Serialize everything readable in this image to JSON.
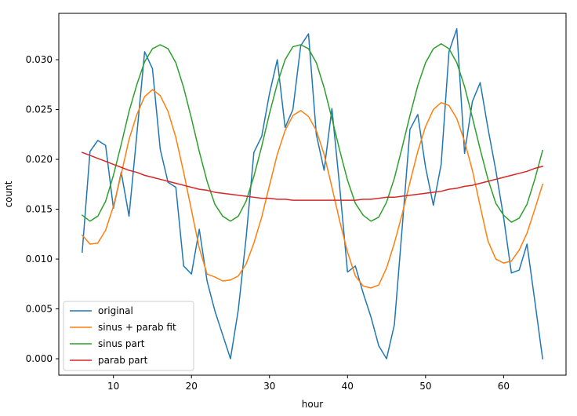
{
  "chart_data": {
    "type": "line",
    "title": "",
    "xlabel": "hour",
    "ylabel": "count",
    "xlim": [
      3,
      68
    ],
    "ylim": [
      -0.00165,
      0.03465
    ],
    "xticks": [
      10,
      20,
      30,
      40,
      50,
      60
    ],
    "xtick_labels": [
      "10",
      "20",
      "30",
      "40",
      "50",
      "60"
    ],
    "yticks": [
      0.0,
      0.005,
      0.01,
      0.015,
      0.02,
      0.025,
      0.03
    ],
    "ytick_labels": [
      "0.000",
      "0.005",
      "0.010",
      "0.015",
      "0.020",
      "0.025",
      "0.030"
    ],
    "grid": false,
    "legend_position": "lower-left",
    "x": [
      6,
      7,
      8,
      9,
      10,
      11,
      12,
      13,
      14,
      15,
      16,
      17,
      18,
      19,
      20,
      21,
      22,
      23,
      24,
      25,
      26,
      27,
      28,
      29,
      30,
      31,
      32,
      33,
      34,
      35,
      36,
      37,
      38,
      39,
      40,
      41,
      42,
      43,
      44,
      45,
      46,
      47,
      48,
      49,
      50,
      51,
      52,
      53,
      54,
      55,
      56,
      57,
      58,
      59,
      60,
      61,
      62,
      63,
      64,
      65
    ],
    "series": [
      {
        "name": "original",
        "color": "#1f77b4",
        "values": [
          0.0107,
          0.0208,
          0.0219,
          0.0214,
          0.0151,
          0.0187,
          0.0143,
          0.0225,
          0.0308,
          0.0291,
          0.021,
          0.0177,
          0.0172,
          0.0093,
          0.0085,
          0.013,
          0.0078,
          0.0048,
          0.0024,
          0.0,
          0.0049,
          0.0121,
          0.0207,
          0.0223,
          0.0266,
          0.03,
          0.0232,
          0.025,
          0.0314,
          0.0326,
          0.0225,
          0.0189,
          0.0251,
          0.0172,
          0.0087,
          0.0093,
          0.0066,
          0.0042,
          0.0013,
          0.0,
          0.0034,
          0.0131,
          0.023,
          0.0245,
          0.0192,
          0.0154,
          0.0195,
          0.0308,
          0.0331,
          0.0206,
          0.0258,
          0.0277,
          0.0231,
          0.0189,
          0.0142,
          0.0086,
          0.0089,
          0.0115,
          0.0058,
          0.0
        ]
      },
      {
        "name": "sinus + parab fit",
        "color": "#ff7f0e",
        "values": [
          0.0124,
          0.0115,
          0.0116,
          0.0129,
          0.0153,
          0.0185,
          0.022,
          0.0245,
          0.0263,
          0.027,
          0.0264,
          0.0248,
          0.0222,
          0.0187,
          0.0149,
          0.0111,
          0.0085,
          0.0082,
          0.0078,
          0.0079,
          0.0083,
          0.0095,
          0.0116,
          0.0142,
          0.0174,
          0.0205,
          0.0229,
          0.0244,
          0.0249,
          0.0243,
          0.0229,
          0.0205,
          0.0172,
          0.0138,
          0.0107,
          0.0083,
          0.0073,
          0.0071,
          0.0074,
          0.0091,
          0.0116,
          0.0145,
          0.0177,
          0.0208,
          0.0233,
          0.025,
          0.0257,
          0.0254,
          0.0241,
          0.0218,
          0.0189,
          0.0153,
          0.0118,
          0.01,
          0.0096,
          0.0098,
          0.0109,
          0.0126,
          0.015,
          0.0175
        ]
      },
      {
        "name": "sinus part",
        "color": "#2ca02c",
        "values": [
          0.0144,
          0.0138,
          0.0143,
          0.0158,
          0.0184,
          0.0215,
          0.0248,
          0.0275,
          0.0298,
          0.0311,
          0.0315,
          0.0311,
          0.0297,
          0.0272,
          0.0241,
          0.0208,
          0.0178,
          0.0155,
          0.0143,
          0.0138,
          0.0143,
          0.0158,
          0.0183,
          0.0213,
          0.0246,
          0.0276,
          0.03,
          0.0313,
          0.0315,
          0.0311,
          0.0297,
          0.0272,
          0.0241,
          0.0209,
          0.0179,
          0.0156,
          0.0144,
          0.0138,
          0.0142,
          0.0157,
          0.0181,
          0.0212,
          0.0244,
          0.0274,
          0.0297,
          0.0311,
          0.0316,
          0.0311,
          0.0297,
          0.0273,
          0.0242,
          0.021,
          0.018,
          0.0156,
          0.0144,
          0.0137,
          0.0141,
          0.0155,
          0.018,
          0.0209
        ]
      },
      {
        "name": "parab part",
        "color": "#d62728",
        "values": [
          0.0207,
          0.0204,
          0.0201,
          0.0198,
          0.0195,
          0.0192,
          0.0189,
          0.0187,
          0.0184,
          0.0182,
          0.018,
          0.0178,
          0.0176,
          0.0174,
          0.0172,
          0.017,
          0.0169,
          0.0167,
          0.0166,
          0.0165,
          0.0164,
          0.0163,
          0.0162,
          0.0161,
          0.0161,
          0.016,
          0.016,
          0.0159,
          0.0159,
          0.0159,
          0.0159,
          0.0159,
          0.0159,
          0.0159,
          0.0159,
          0.0159,
          0.016,
          0.016,
          0.0161,
          0.0162,
          0.0162,
          0.0163,
          0.0164,
          0.0165,
          0.0166,
          0.0167,
          0.0168,
          0.017,
          0.0171,
          0.0173,
          0.0174,
          0.0176,
          0.0178,
          0.018,
          0.0182,
          0.0184,
          0.0186,
          0.0188,
          0.0191,
          0.0193
        ]
      }
    ]
  }
}
